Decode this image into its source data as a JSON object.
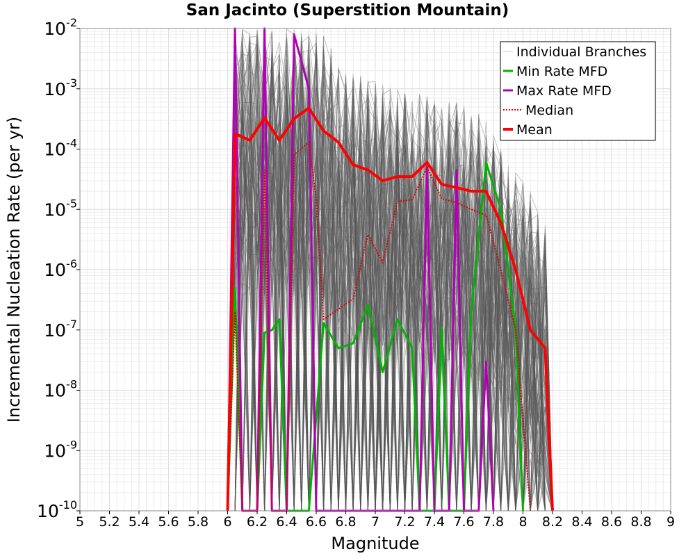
{
  "chart_data": {
    "type": "line",
    "title": "San Jacinto (Superstition Mountain)",
    "xlabel": "Magnitude",
    "ylabel": "Incremental Nucleation Rate (per yr)",
    "xlim": [
      5,
      9
    ],
    "ylim": [
      1e-10,
      0.01
    ],
    "yscale": "log",
    "grid": true,
    "legend_position": "top-right",
    "x_ticks": [
      "5",
      "5.2",
      "5.4",
      "5.6",
      "5.8",
      "6",
      "6.2",
      "6.4",
      "6.6",
      "6.8",
      "7",
      "7.2",
      "7.4",
      "7.6",
      "7.8",
      "8",
      "8.2",
      "8.4",
      "8.6",
      "8.8",
      "9"
    ],
    "y_ticks": [
      {
        "base": "10",
        "exp": "-10",
        "value": 1e-10
      },
      {
        "base": "10",
        "exp": "-9",
        "value": 1e-09
      },
      {
        "base": "10",
        "exp": "-8",
        "value": 1e-08
      },
      {
        "base": "10",
        "exp": "-7",
        "value": 1e-07
      },
      {
        "base": "10",
        "exp": "-6",
        "value": 1e-06
      },
      {
        "base": "10",
        "exp": "-5",
        "value": 1e-05
      },
      {
        "base": "10",
        "exp": "-4",
        "value": 0.0001
      },
      {
        "base": "10",
        "exp": "-3",
        "value": 0.001
      },
      {
        "base": "10",
        "exp": "-2",
        "value": 0.01
      }
    ],
    "legend": [
      {
        "label": "Individual Branches",
        "color": "#c8c8c8",
        "style": "thin"
      },
      {
        "label": "Min Rate MFD",
        "color": "#00b400",
        "style": "solid"
      },
      {
        "label": "Max Rate MFD",
        "color": "#b400b4",
        "style": "solid"
      },
      {
        "label": "Median",
        "color": "#e00000",
        "style": "dotted"
      },
      {
        "label": "Mean",
        "color": "#ff0000",
        "style": "thick"
      }
    ],
    "branch_envelope": {
      "color": "#555555",
      "x": [
        6.0,
        6.05,
        6.15,
        6.25,
        6.35,
        6.45,
        6.55,
        6.65,
        6.75,
        6.85,
        6.95,
        7.05,
        7.15,
        7.25,
        7.35,
        7.45,
        7.55,
        7.65,
        7.75,
        7.85,
        7.95,
        8.05,
        8.15,
        8.2
      ],
      "upper": [
        1e-10,
        0.01,
        0.01,
        0.01,
        0.01,
        0.01,
        0.01,
        0.009,
        0.0025,
        0.0018,
        0.0015,
        0.0012,
        0.001,
        0.0009,
        0.0008,
        0.0007,
        0.0006,
        0.0005,
        0.0003,
        0.0001,
        4e-05,
        2e-05,
        6e-06,
        1e-10
      ]
    },
    "series": [
      {
        "name": "Min Rate MFD",
        "color": "#00b400",
        "x": [
          6.0,
          6.05,
          6.1,
          6.2,
          6.25,
          6.3,
          6.35,
          6.4,
          6.45,
          6.55,
          6.65,
          6.75,
          6.85,
          6.95,
          7.05,
          7.15,
          7.25,
          7.3,
          7.35,
          7.4,
          7.45,
          7.5,
          7.55,
          7.6,
          7.65,
          7.75,
          7.85,
          7.95,
          8.0
        ],
        "y": [
          1e-10,
          5e-07,
          1e-10,
          1e-10,
          9e-08,
          1e-07,
          1.5e-07,
          1e-10,
          1e-10,
          1e-10,
          1.3e-07,
          5e-08,
          6e-08,
          2.6e-07,
          2e-08,
          1.5e-07,
          5e-08,
          1e-10,
          1e-10,
          1e-10,
          1.1e-07,
          1e-10,
          1e-10,
          1e-10,
          2e-07,
          6e-05,
          1e-05,
          1e-07,
          1e-10
        ]
      },
      {
        "name": "Max Rate MFD",
        "color": "#b400b4",
        "x": [
          6.0,
          6.05,
          6.1,
          6.2,
          6.25,
          6.3,
          6.4,
          6.45,
          6.55,
          6.6,
          6.65,
          7.3,
          7.35,
          7.4,
          7.5,
          7.55,
          7.6,
          7.7,
          7.75,
          7.8
        ],
        "y": [
          1e-10,
          0.012,
          1e-10,
          1e-10,
          0.012,
          1e-10,
          1e-10,
          0.008,
          0.001,
          1e-10,
          1e-10,
          1e-10,
          5e-05,
          1e-10,
          1e-10,
          4.5e-05,
          1e-10,
          1e-10,
          3e-08,
          1e-10
        ]
      },
      {
        "name": "Median",
        "color": "#e00000",
        "dashed": true,
        "x": [
          6.0,
          6.05,
          6.1,
          6.2,
          6.25,
          6.3,
          6.4,
          6.45,
          6.55,
          6.6,
          6.65,
          6.75,
          6.85,
          6.95,
          7.05,
          7.15,
          7.25,
          7.35,
          7.45,
          7.55,
          7.65,
          7.75,
          7.85,
          7.95,
          8.05
        ],
        "y": [
          1e-10,
          2e-07,
          1e-10,
          1e-10,
          4.5e-05,
          1e-10,
          1e-10,
          8e-05,
          0.00013,
          1.5e-05,
          1.5e-07,
          2.2e-07,
          3.3e-07,
          3.8e-06,
          1.3e-06,
          1.35e-05,
          1.45e-05,
          5e-05,
          1.5e-05,
          1.3e-05,
          1e-05,
          8e-06,
          1e-06,
          1e-07,
          1e-10
        ]
      },
      {
        "name": "Mean",
        "color": "#ff0000",
        "x": [
          6.0,
          6.05,
          6.15,
          6.25,
          6.35,
          6.45,
          6.55,
          6.65,
          6.75,
          6.85,
          6.95,
          7.05,
          7.15,
          7.25,
          7.35,
          7.45,
          7.55,
          7.65,
          7.75,
          7.85,
          7.95,
          8.05,
          8.15,
          8.2
        ],
        "y": [
          1e-10,
          0.00018,
          0.00014,
          0.00033,
          0.00014,
          0.00032,
          0.00048,
          0.0002,
          0.00013,
          5.5e-05,
          4.5e-05,
          3e-05,
          3.5e-05,
          3.5e-05,
          6e-05,
          2.6e-05,
          2.3e-05,
          2e-05,
          2e-05,
          6e-06,
          1e-06,
          1e-07,
          5e-08,
          1e-10
        ]
      }
    ]
  }
}
